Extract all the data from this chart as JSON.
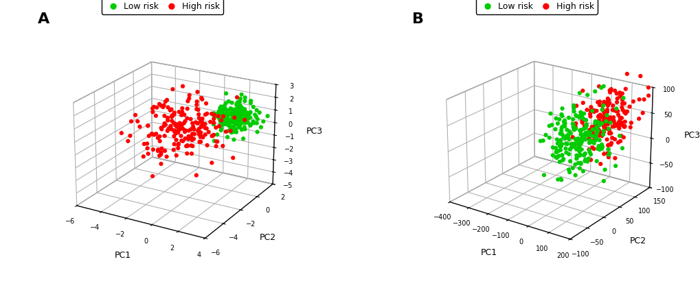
{
  "panel_A": {
    "label": "A",
    "xlabel": "PC1",
    "ylabel": "PC2",
    "zlabel": "PC3",
    "xlim": [
      -6,
      4
    ],
    "ylim": [
      -6,
      2
    ],
    "zlim": [
      -5,
      3
    ],
    "xticks": [
      -6,
      -4,
      -2,
      0,
      2,
      4
    ],
    "yticks": [
      -6,
      -4,
      -2,
      0,
      2
    ],
    "zticks": [
      -5,
      -4,
      -3,
      -2,
      -1,
      0,
      1,
      2,
      3
    ],
    "low_risk": {
      "pc1_mean": 2.5,
      "pc1_std": 0.7,
      "pc2_mean": -0.5,
      "pc2_std": 0.7,
      "pc3_mean": 1.2,
      "pc3_std": 0.5,
      "n": 220,
      "color": "#00cc00"
    },
    "high_risk": {
      "pc1_mean": 0.0,
      "pc1_std": 1.5,
      "pc2_mean": -3.0,
      "pc2_std": 1.2,
      "pc3_mean": 0.8,
      "pc3_std": 1.0,
      "n": 200,
      "color": "#ff0000"
    }
  },
  "panel_B": {
    "label": "B",
    "xlabel": "PC1",
    "ylabel": "PC2",
    "zlabel": "PC3",
    "xlim": [
      -400,
      200
    ],
    "ylim": [
      -100,
      150
    ],
    "zlim": [
      -100,
      100
    ],
    "xticks": [
      -400,
      -300,
      -200,
      -100,
      0,
      100,
      200
    ],
    "yticks": [
      -100,
      -50,
      0,
      50,
      100,
      150
    ],
    "zticks": [
      -100,
      -50,
      0,
      50,
      100
    ],
    "low_risk": {
      "pc1_mean": 50,
      "pc1_std": 55,
      "pc2_mean": 20,
      "pc2_std": 35,
      "pc3_mean": 30,
      "pc3_std": 30,
      "n": 220,
      "color": "#00cc00"
    },
    "high_risk": {
      "pc1_mean": 120,
      "pc1_std": 50,
      "pc2_mean": 60,
      "pc2_std": 35,
      "pc3_mean": 55,
      "pc3_std": 30,
      "n": 180,
      "color": "#ff0000"
    }
  },
  "legend_labels": [
    "Low risk",
    "High risk"
  ],
  "legend_colors": [
    "#00cc00",
    "#ff0000"
  ],
  "background_color": "#ffffff",
  "marker_size": 20,
  "alpha": 1.0,
  "panel_fontsize": 16,
  "label_fontsize": 9,
  "tick_fontsize": 7,
  "legend_fontsize": 9,
  "seed_A": 42,
  "seed_B": 77,
  "elev_A": 22,
  "azim_A": -60,
  "elev_B": 22,
  "azim_B": -55
}
